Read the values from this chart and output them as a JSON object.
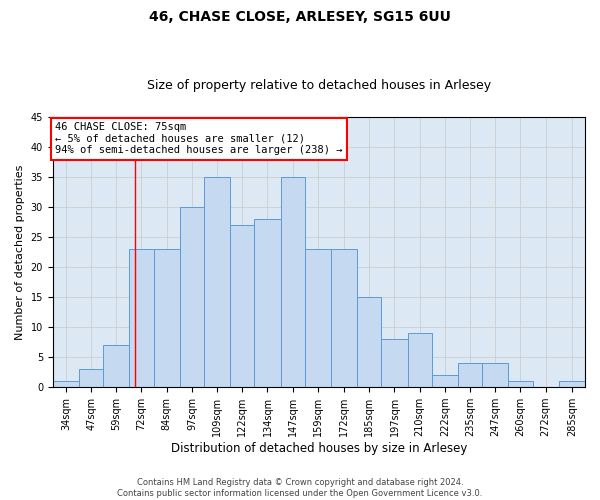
{
  "title1": "46, CHASE CLOSE, ARLESEY, SG15 6UU",
  "title2": "Size of property relative to detached houses in Arlesey",
  "xlabel": "Distribution of detached houses by size in Arlesey",
  "ylabel": "Number of detached properties",
  "footnote": "Contains HM Land Registry data © Crown copyright and database right 2024.\nContains public sector information licensed under the Open Government Licence v3.0.",
  "bin_labels": [
    "34sqm",
    "47sqm",
    "59sqm",
    "72sqm",
    "84sqm",
    "97sqm",
    "109sqm",
    "122sqm",
    "134sqm",
    "147sqm",
    "159sqm",
    "172sqm",
    "185sqm",
    "197sqm",
    "210sqm",
    "222sqm",
    "235sqm",
    "247sqm",
    "260sqm",
    "272sqm",
    "285sqm"
  ],
  "bar_values": [
    1,
    3,
    7,
    23,
    23,
    30,
    35,
    27,
    28,
    35,
    23,
    23,
    15,
    8,
    9,
    2,
    4,
    4,
    1,
    0,
    1
  ],
  "bar_color": "#c5d9f0",
  "bar_edgecolor": "#5b9bd5",
  "bin_edges": [
    34,
    47,
    59,
    72,
    84,
    97,
    109,
    122,
    134,
    147,
    159,
    172,
    185,
    197,
    210,
    222,
    235,
    247,
    260,
    272,
    285,
    298
  ],
  "red_line_x": 75,
  "annotation_title": "46 CHASE CLOSE: 75sqm",
  "annotation_line1": "← 5% of detached houses are smaller (12)",
  "annotation_line2": "94% of semi-detached houses are larger (238) →",
  "annotation_box_color": "white",
  "annotation_box_edgecolor": "red",
  "ylim": [
    0,
    45
  ],
  "yticks": [
    0,
    5,
    10,
    15,
    20,
    25,
    30,
    35,
    40,
    45
  ],
  "grid_color": "#c8c8c8",
  "background_color": "#dce9f5",
  "title1_fontsize": 10,
  "title2_fontsize": 9,
  "ylabel_fontsize": 8,
  "xlabel_fontsize": 8.5,
  "tick_fontsize": 7,
  "annot_fontsize": 7.5,
  "footnote_fontsize": 6
}
